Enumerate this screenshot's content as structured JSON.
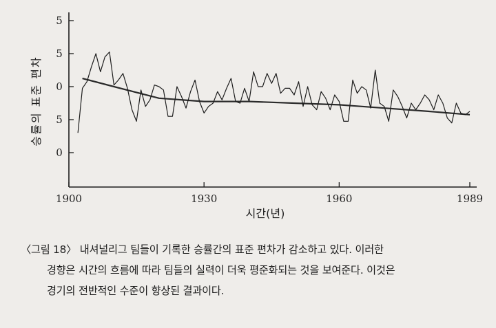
{
  "chart_data": {
    "type": "line",
    "xlabel": "시간(년)",
    "ylabel": "승률의 표준 편차",
    "xlim": [
      1900,
      1989
    ],
    "ylim": [
      0,
      5
    ],
    "x_ticks": [
      1900,
      1930,
      1960,
      1989
    ],
    "y_ticks": [
      {
        "value": 5,
        "label": "5"
      },
      {
        "value": 4,
        "label": "5"
      },
      {
        "value": 3,
        "label": "0"
      },
      {
        "value": 2,
        "label": "5"
      },
      {
        "value": 1,
        "label": "0"
      }
    ],
    "series": [
      {
        "x": [
          1902,
          1903,
          1904,
          1905,
          1906,
          1907,
          1908,
          1909,
          1910,
          1911,
          1912,
          1913,
          1914,
          1915,
          1916,
          1917,
          1918,
          1919,
          1920,
          1921,
          1922,
          1923,
          1924,
          1925,
          1926,
          1927,
          1928,
          1929,
          1930,
          1931,
          1932,
          1933,
          1934,
          1935,
          1936,
          1937,
          1938,
          1939,
          1940,
          1941,
          1942,
          1943,
          1944,
          1945,
          1946,
          1947,
          1948,
          1949,
          1950,
          1951,
          1952,
          1953,
          1954,
          1955,
          1956,
          1957,
          1958,
          1959,
          1960,
          1961,
          1962,
          1963,
          1964,
          1965,
          1966,
          1967,
          1968,
          1969,
          1970,
          1971,
          1972,
          1973,
          1974,
          1975,
          1976,
          1977,
          1978,
          1979,
          1980,
          1981,
          1982,
          1983,
          1984,
          1985,
          1986,
          1987,
          1988,
          1989
        ],
        "values": [
          1.6,
          2.95,
          3.15,
          3.6,
          4.0,
          3.45,
          3.9,
          4.05,
          3.05,
          3.2,
          3.4,
          2.95,
          2.3,
          1.95,
          2.9,
          2.4,
          2.6,
          3.05,
          3.0,
          2.9,
          2.1,
          2.1,
          3.0,
          2.7,
          2.35,
          2.85,
          3.2,
          2.55,
          2.2,
          2.4,
          2.5,
          2.85,
          2.6,
          2.95,
          3.25,
          2.55,
          2.5,
          2.95,
          2.55,
          3.45,
          3.0,
          3.0,
          3.4,
          3.1,
          3.4,
          2.8,
          2.95,
          2.95,
          2.75,
          3.15,
          2.4,
          3.0,
          2.45,
          2.3,
          2.85,
          2.65,
          2.3,
          2.75,
          2.55,
          1.95,
          1.95,
          3.2,
          2.8,
          3.0,
          2.9,
          2.35,
          3.5,
          2.5,
          2.4,
          1.95,
          2.9,
          2.7,
          2.4,
          2.05,
          2.5,
          2.3,
          2.5,
          2.75,
          2.6,
          2.3,
          2.75,
          2.5,
          2.05,
          1.9,
          2.5,
          2.2,
          2.15,
          2.25
        ]
      }
    ],
    "trend": {
      "x": [
        1903,
        1910,
        1920,
        1930,
        1940,
        1950,
        1960,
        1970,
        1980,
        1989
      ],
      "values": [
        3.25,
        3.0,
        2.65,
        2.55,
        2.55,
        2.5,
        2.45,
        2.35,
        2.25,
        2.15
      ]
    }
  },
  "caption": {
    "label": "〈그림 18〉",
    "line1": "내셔널리그 팀들이 기록한 승률간의 표준 편차가 감소하고 있다. 이러한",
    "line2": "경향은 시간의 흐름에 따라 팀들의 실력이 더욱 평준화되는 것을 보여준다. 이것은",
    "line3": "경기의 전반적인 수준이 향상된 결과이다."
  }
}
